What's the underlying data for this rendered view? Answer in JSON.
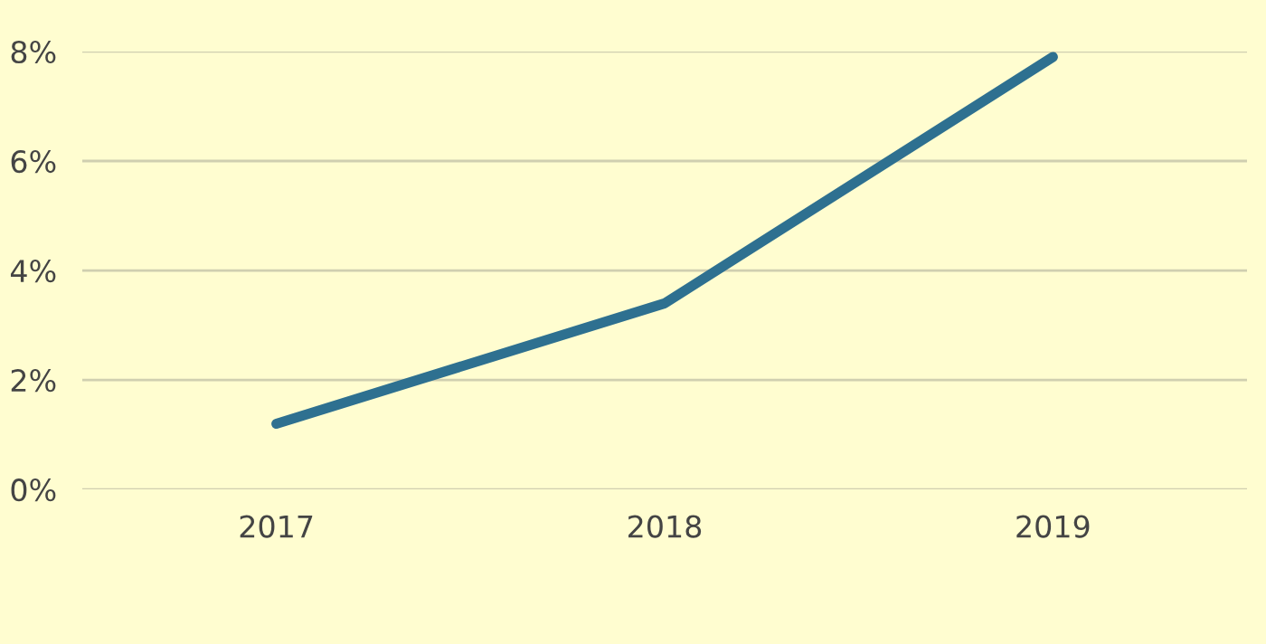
{
  "chart_data": {
    "type": "line",
    "categories": [
      "2017",
      "2018",
      "2019"
    ],
    "series": [
      {
        "color": "#2e7090",
        "values": [
          1.2,
          3.4,
          7.9
        ]
      }
    ],
    "ylim": [
      0,
      8
    ],
    "yticks": [
      {
        "value": 0,
        "label": "0%"
      },
      {
        "value": 2,
        "label": "2%"
      },
      {
        "value": 4,
        "label": "4%"
      },
      {
        "value": 6,
        "label": "6%"
      },
      {
        "value": 8,
        "label": "8%"
      }
    ],
    "grid": "y",
    "line_style": "solid",
    "marker": "none"
  }
}
